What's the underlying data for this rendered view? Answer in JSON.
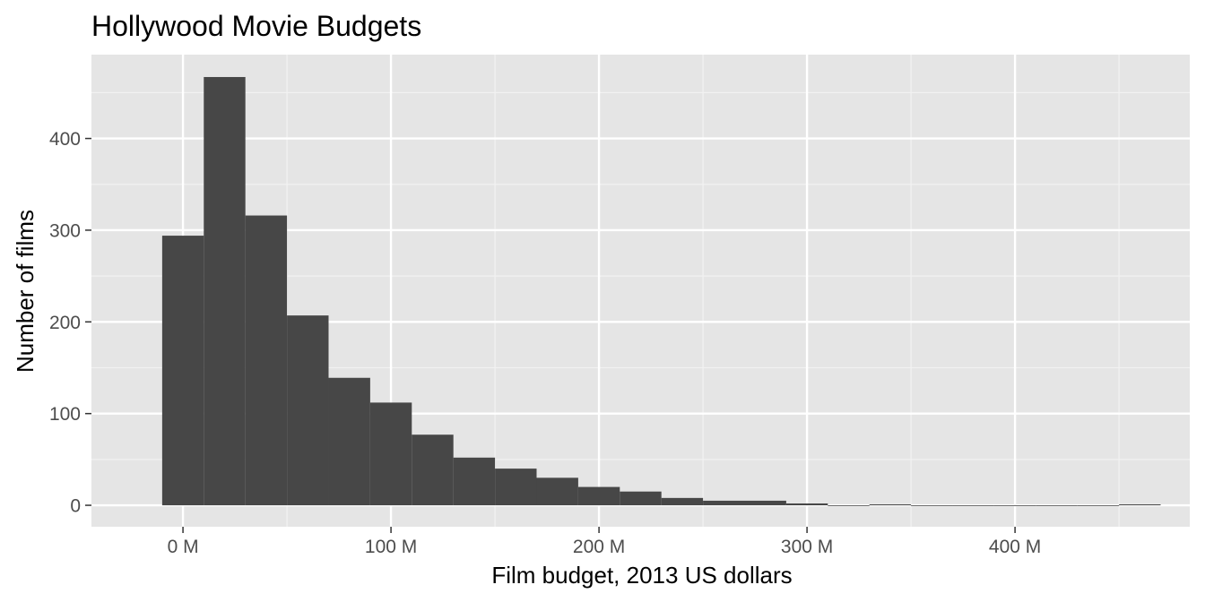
{
  "chart_data": {
    "type": "bar",
    "title": "Hollywood Movie Budgets",
    "xlabel": "Film budget, 2013 US dollars",
    "ylabel": "Number of films",
    "bin_width_millions": 20,
    "bins": [
      {
        "start": -10,
        "end": 10,
        "count": 294
      },
      {
        "start": 10,
        "end": 30,
        "count": 467
      },
      {
        "start": 30,
        "end": 50,
        "count": 316
      },
      {
        "start": 50,
        "end": 70,
        "count": 207
      },
      {
        "start": 70,
        "end": 90,
        "count": 139
      },
      {
        "start": 90,
        "end": 110,
        "count": 112
      },
      {
        "start": 110,
        "end": 130,
        "count": 77
      },
      {
        "start": 130,
        "end": 150,
        "count": 52
      },
      {
        "start": 150,
        "end": 170,
        "count": 40
      },
      {
        "start": 170,
        "end": 190,
        "count": 30
      },
      {
        "start": 190,
        "end": 210,
        "count": 20
      },
      {
        "start": 210,
        "end": 230,
        "count": 15
      },
      {
        "start": 230,
        "end": 250,
        "count": 8
      },
      {
        "start": 250,
        "end": 270,
        "count": 5
      },
      {
        "start": 270,
        "end": 290,
        "count": 5
      },
      {
        "start": 290,
        "end": 310,
        "count": 2
      },
      {
        "start": 310,
        "end": 330,
        "count": 0
      },
      {
        "start": 330,
        "end": 350,
        "count": 1
      },
      {
        "start": 350,
        "end": 370,
        "count": 0
      },
      {
        "start": 370,
        "end": 390,
        "count": 0
      },
      {
        "start": 390,
        "end": 410,
        "count": 0
      },
      {
        "start": 410,
        "end": 430,
        "count": 0
      },
      {
        "start": 430,
        "end": 450,
        "count": 0
      },
      {
        "start": 450,
        "end": 470,
        "count": 1
      }
    ],
    "xlim": [
      -44,
      484
    ],
    "ylim": [
      -23.4,
      491.4
    ],
    "x_ticks": [
      {
        "value": 0,
        "label": "0 M"
      },
      {
        "value": 100,
        "label": "100 M"
      },
      {
        "value": 200,
        "label": "200 M"
      },
      {
        "value": 300,
        "label": "300 M"
      },
      {
        "value": 400,
        "label": "400 M"
      }
    ],
    "y_ticks": [
      {
        "value": 0,
        "label": "0"
      },
      {
        "value": 100,
        "label": "100"
      },
      {
        "value": 200,
        "label": "200"
      },
      {
        "value": 300,
        "label": "300"
      },
      {
        "value": 400,
        "label": "400"
      }
    ],
    "grid": true,
    "legend": "none",
    "colors": {
      "bar": "#474747",
      "panel_bg": "#e5e5e5",
      "grid_major": "#ffffff",
      "grid_minor": "#f2f2f2",
      "tick_text": "#4d4d4d",
      "tick_mark": "#333333"
    }
  }
}
